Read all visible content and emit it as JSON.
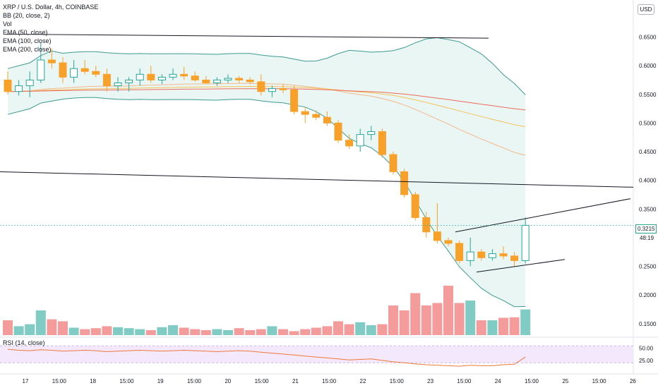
{
  "header": {
    "symbol_line": "XRP / U.S. Dollar, 4h, COINBASE",
    "indicators": [
      "BB (20, close, 2)",
      "Vol",
      "EMA (50, close)",
      "EMA (100, close)",
      "EMA (200, close)"
    ],
    "rsi_label": "RSI (14, close)",
    "currency": "USD"
  },
  "colors": {
    "up": "#26a69a",
    "down": "#f7a12a",
    "vol_up": "#80cbc4",
    "vol_down": "#f49b9b",
    "bb_band": "#3d9b8f",
    "bb_fill": "#e9f6f4",
    "ema50": "#f3b88a",
    "ema100": "#f4c15a",
    "ema200": "#ef6a5a",
    "rsi_line": "#f0783a",
    "rsi_fill": "#f3e8fc"
  },
  "price_axis": {
    "ticks": [
      "0.6500",
      "0.6000",
      "0.5500",
      "0.5000",
      "0.4500",
      "0.4000",
      "0.3500",
      "0.2500",
      "0.2000",
      "0.1500"
    ],
    "last_price": "0.3215",
    "countdown": "48:19"
  },
  "rsi_axis": {
    "ticks": [
      "50.00",
      "25.00"
    ]
  },
  "time_axis": [
    "17",
    "15:00",
    "18",
    "15:00",
    "19",
    "15:00",
    "20",
    "15:00",
    "21",
    "15:00",
    "22",
    "15:00",
    "23",
    "15:00",
    "24",
    "15:00",
    "25",
    "15:00",
    "26"
  ],
  "chart_data": {
    "type": "candlestick",
    "ylim": [
      0.13,
      0.69
    ],
    "candles": [
      [
        0.575,
        0.59,
        0.55,
        0.555
      ],
      [
        0.555,
        0.575,
        0.548,
        0.565
      ],
      [
        0.565,
        0.59,
        0.545,
        0.575
      ],
      [
        0.575,
        0.64,
        0.57,
        0.61
      ],
      [
        0.61,
        0.63,
        0.595,
        0.605
      ],
      [
        0.605,
        0.615,
        0.57,
        0.58
      ],
      [
        0.58,
        0.61,
        0.57,
        0.595
      ],
      [
        0.595,
        0.61,
        0.585,
        0.59
      ],
      [
        0.59,
        0.6,
        0.58,
        0.585
      ],
      [
        0.585,
        0.595,
        0.555,
        0.565
      ],
      [
        0.565,
        0.58,
        0.555,
        0.57
      ],
      [
        0.57,
        0.58,
        0.555,
        0.575
      ],
      [
        0.575,
        0.595,
        0.565,
        0.585
      ],
      [
        0.585,
        0.6,
        0.57,
        0.575
      ],
      [
        0.575,
        0.585,
        0.568,
        0.58
      ],
      [
        0.58,
        0.595,
        0.575,
        0.585
      ],
      [
        0.585,
        0.598,
        0.575,
        0.582
      ],
      [
        0.582,
        0.59,
        0.572,
        0.575
      ],
      [
        0.575,
        0.582,
        0.568,
        0.57
      ],
      [
        0.57,
        0.58,
        0.565,
        0.575
      ],
      [
        0.575,
        0.585,
        0.57,
        0.578
      ],
      [
        0.578,
        0.582,
        0.57,
        0.575
      ],
      [
        0.575,
        0.58,
        0.568,
        0.572
      ],
      [
        0.572,
        0.585,
        0.548,
        0.555
      ],
      [
        0.555,
        0.565,
        0.545,
        0.56
      ],
      [
        0.56,
        0.568,
        0.552,
        0.558
      ],
      [
        0.558,
        0.565,
        0.515,
        0.52
      ],
      [
        0.52,
        0.528,
        0.5,
        0.515
      ],
      [
        0.515,
        0.522,
        0.505,
        0.51
      ],
      [
        0.51,
        0.52,
        0.495,
        0.5
      ],
      [
        0.5,
        0.505,
        0.465,
        0.47
      ],
      [
        0.47,
        0.48,
        0.455,
        0.46
      ],
      [
        0.46,
        0.49,
        0.45,
        0.48
      ],
      [
        0.48,
        0.495,
        0.47,
        0.485
      ],
      [
        0.485,
        0.49,
        0.44,
        0.445
      ],
      [
        0.445,
        0.45,
        0.41,
        0.415
      ],
      [
        0.415,
        0.42,
        0.37,
        0.375
      ],
      [
        0.375,
        0.38,
        0.33,
        0.335
      ],
      [
        0.335,
        0.345,
        0.3,
        0.31
      ],
      [
        0.31,
        0.36,
        0.29,
        0.295
      ],
      [
        0.295,
        0.3,
        0.285,
        0.29
      ],
      [
        0.29,
        0.295,
        0.255,
        0.26
      ],
      [
        0.26,
        0.3,
        0.25,
        0.275
      ],
      [
        0.275,
        0.28,
        0.26,
        0.265
      ],
      [
        0.265,
        0.28,
        0.26,
        0.272
      ],
      [
        0.272,
        0.285,
        0.262,
        0.268
      ],
      [
        0.268,
        0.275,
        0.25,
        0.26
      ],
      [
        0.26,
        0.335,
        0.255,
        0.3215
      ]
    ],
    "volume": [
      0.3,
      0.18,
      0.22,
      0.5,
      0.32,
      0.28,
      0.15,
      0.12,
      0.14,
      0.18,
      0.16,
      0.14,
      0.12,
      0.1,
      0.16,
      0.2,
      0.15,
      0.12,
      0.1,
      0.12,
      0.1,
      0.14,
      0.1,
      0.12,
      0.18,
      0.12,
      0.08,
      0.12,
      0.15,
      0.18,
      0.28,
      0.22,
      0.26,
      0.2,
      0.22,
      0.6,
      0.5,
      0.85,
      0.6,
      0.65,
      1.0,
      0.65,
      0.7,
      0.3,
      0.3,
      0.35,
      0.36,
      0.52
    ],
    "rsi": [
      48,
      46,
      45,
      47,
      46,
      44,
      45,
      46,
      45,
      43,
      44,
      45,
      46,
      45,
      44,
      45,
      46,
      45,
      44,
      43,
      44,
      45,
      44,
      42,
      40,
      38,
      36,
      34,
      32,
      30,
      28,
      26,
      27,
      28,
      25,
      22,
      20,
      18,
      16,
      15,
      14,
      13,
      15,
      14,
      14,
      16,
      17,
      32
    ]
  }
}
